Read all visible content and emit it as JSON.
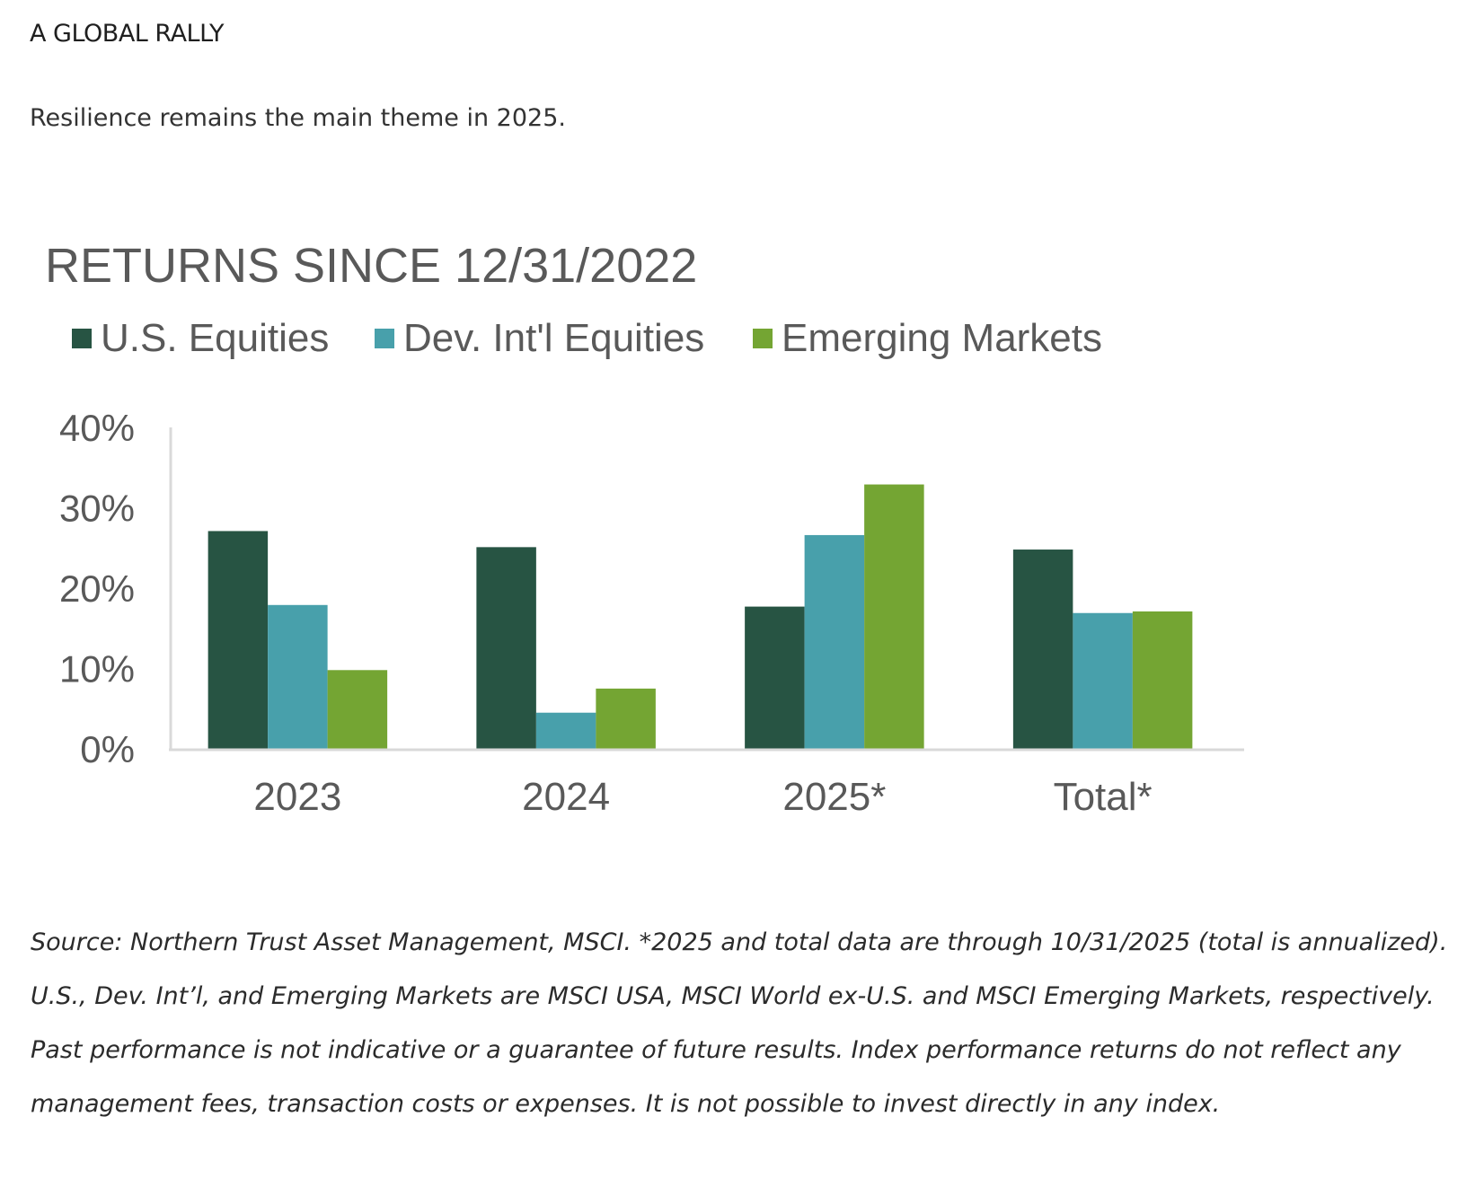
{
  "header": {
    "kicker": "A GLOBAL RALLY",
    "subtitle": "Resilience remains the main theme in 2025."
  },
  "footnote": "Source: Northern Trust Asset Management, MSCI. *2025 and total data are through 10/31/2025 (total is annualized). U.S., Dev. Int’l, and Emerging Markets are MSCI USA, MSCI World ex-U.S. and MSCI Emerging Markets, respectively. Past performance is not indicative or a guarantee of future results. Index performance returns do not reflect any management fees, transaction costs or expenses. It is not possible to invest directly in any index.",
  "chart_data": {
    "type": "bar",
    "title": "RETURNS SINCE 12/31/2022",
    "xlabel": "",
    "ylabel": "",
    "categories": [
      "2023",
      "2024",
      "2025*",
      "Total*"
    ],
    "series": [
      {
        "name": "U.S. Equities",
        "color": "#275443",
        "values": [
          27.1,
          25.1,
          17.7,
          24.8
        ]
      },
      {
        "name": "Dev. Int'l Equities",
        "color": "#48a0ab",
        "values": [
          17.9,
          4.5,
          26.6,
          16.9
        ]
      },
      {
        "name": "Emerging Markets",
        "color": "#74a533",
        "values": [
          9.8,
          7.5,
          32.9,
          17.1
        ]
      }
    ],
    "ylim": [
      0,
      40
    ],
    "yticks": [
      "0%",
      "10%",
      "20%",
      "30%",
      "40%"
    ],
    "ytick_values": [
      0,
      10,
      20,
      30,
      40
    ],
    "grid": false,
    "legend": "top-left"
  }
}
